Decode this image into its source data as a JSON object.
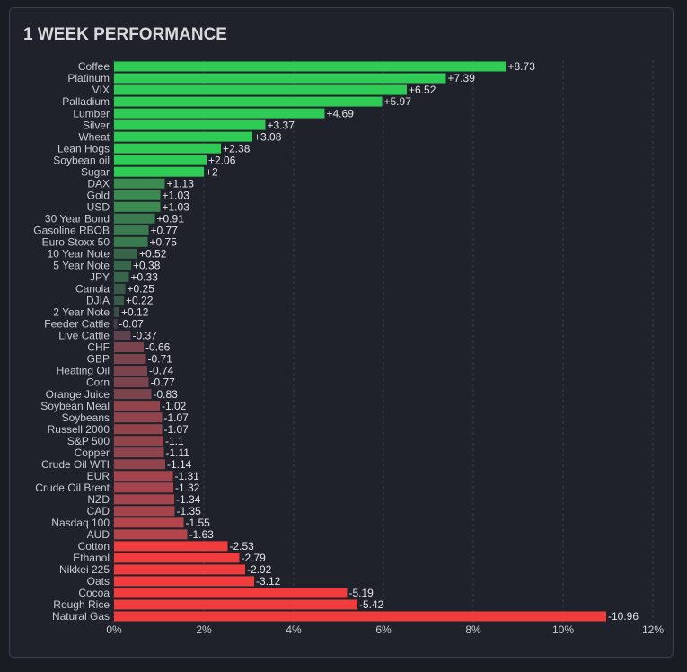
{
  "chart_data": {
    "type": "bar",
    "orientation": "horizontal",
    "title": "1 WEEK PERFORMANCE",
    "categories": [
      "Coffee",
      "Platinum",
      "VIX",
      "Palladium",
      "Lumber",
      "Silver",
      "Wheat",
      "Lean Hogs",
      "Soybean oil",
      "Sugar",
      "DAX",
      "Gold",
      "USD",
      "30 Year Bond",
      "Gasoline RBOB",
      "Euro Stoxx 50",
      "10 Year Note",
      "5 Year Note",
      "JPY",
      "Canola",
      "DJIA",
      "2 Year Note",
      "Feeder Cattle",
      "Live Cattle",
      "CHF",
      "GBP",
      "Heating Oil",
      "Corn",
      "Orange Juice",
      "Soybean Meal",
      "Soybeans",
      "Russell 2000",
      "S&P 500",
      "Copper",
      "Crude Oil WTI",
      "EUR",
      "Crude Oil Brent",
      "NZD",
      "CAD",
      "Nasdaq 100",
      "AUD",
      "Cotton",
      "Ethanol",
      "Nikkei 225",
      "Oats",
      "Cocoa",
      "Rough Rice",
      "Natural Gas"
    ],
    "values": [
      8.73,
      7.39,
      6.52,
      5.97,
      4.69,
      3.37,
      3.08,
      2.38,
      2.06,
      2,
      1.13,
      1.03,
      1.03,
      0.91,
      0.77,
      0.75,
      0.52,
      0.38,
      0.33,
      0.25,
      0.22,
      0.12,
      -0.07,
      -0.37,
      -0.66,
      -0.71,
      -0.74,
      -0.77,
      -0.83,
      -1.02,
      -1.07,
      -1.07,
      -1.1,
      -1.11,
      -1.14,
      -1.31,
      -1.32,
      -1.34,
      -1.35,
      -1.55,
      -1.63,
      -2.53,
      -2.79,
      -2.92,
      -3.12,
      -5.19,
      -5.42,
      -10.96
    ],
    "value_labels": [
      "+8.73",
      "+7.39",
      "+6.52",
      "+5.97",
      "+4.69",
      "+3.37",
      "+3.08",
      "+2.38",
      "+2.06",
      "+2",
      "+1.13",
      "+1.03",
      "+1.03",
      "+0.91",
      "+0.77",
      "+0.75",
      "+0.52",
      "+0.38",
      "+0.33",
      "+0.25",
      "+0.22",
      "+0.12",
      "-0.07",
      "-0.37",
      "-0.66",
      "-0.71",
      "-0.74",
      "-0.77",
      "-0.83",
      "-1.02",
      "-1.07",
      "-1.07",
      "-1.1",
      "-1.11",
      "-1.14",
      "-1.31",
      "-1.32",
      "-1.34",
      "-1.35",
      "-1.55",
      "-1.63",
      "-2.53",
      "-2.79",
      "-2.92",
      "-3.12",
      "-5.19",
      "-5.42",
      "-10.96"
    ],
    "colors": [
      "#2ecc55",
      "#2ecc55",
      "#2ecc55",
      "#2ecc55",
      "#2ecc55",
      "#2ecc55",
      "#2ecc55",
      "#2ecc55",
      "#2ecc55",
      "#2ecc55",
      "#3b8a52",
      "#3b8a52",
      "#3b8a52",
      "#397a4e",
      "#397a4e",
      "#397a4e",
      "#38664a",
      "#38664a",
      "#38664a",
      "#3a5a49",
      "#3a5a49",
      "#3b4d47",
      "#4a3d47",
      "#5e4250",
      "#7a434e",
      "#7a434e",
      "#7a434e",
      "#7a434e",
      "#7a434e",
      "#92444d",
      "#92444d",
      "#92444d",
      "#92444d",
      "#92444d",
      "#92444d",
      "#a5444c",
      "#a5444c",
      "#a5444c",
      "#a5444c",
      "#b4454b",
      "#b4454b",
      "#f03c3c",
      "#f03c3c",
      "#f03c3c",
      "#f03c3c",
      "#f03c3c",
      "#f03c3c",
      "#f03c3c"
    ],
    "xlim": [
      0,
      12
    ],
    "xticks": [
      {
        "value": 0,
        "label": "0%"
      },
      {
        "value": 2,
        "label": "2%"
      },
      {
        "value": 4,
        "label": "4%"
      },
      {
        "value": 6,
        "label": "6%"
      },
      {
        "value": 8,
        "label": "8%"
      },
      {
        "value": 10,
        "label": "10%"
      },
      {
        "value": 12,
        "label": "12%"
      }
    ],
    "grid": true
  }
}
